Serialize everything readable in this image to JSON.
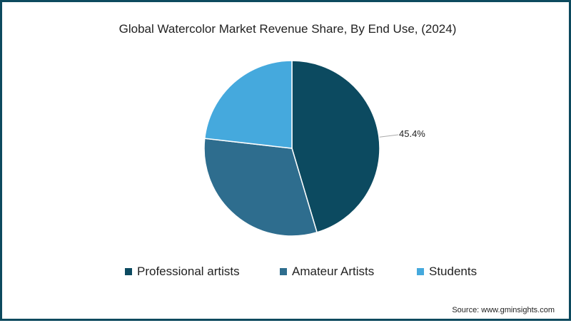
{
  "chart_data": {
    "type": "pie",
    "title": "Global Watercolor Market Revenue Share, By End Use, (2024)",
    "categories": [
      "Professional artists",
      "Amateur Artists",
      "Students"
    ],
    "values": [
      45.4,
      31.4,
      23.2
    ],
    "unit": "%",
    "colors": [
      "#0c4a60",
      "#2e6d8e",
      "#45a9dd"
    ],
    "visible_labels": [
      {
        "category": "Professional artists",
        "text": "45.4%"
      }
    ],
    "start_angle_deg": 0,
    "direction": "clockwise",
    "legend_position": "bottom",
    "source": "Source: www.gminsights.com"
  },
  "header": {
    "title": "Global Watercolor Market Revenue Share, By End Use, (2024)"
  },
  "legend": {
    "items": [
      {
        "label": "Professional artists",
        "color": "#0c4a60"
      },
      {
        "label": "Amateur Artists",
        "color": "#2e6d8e"
      },
      {
        "label": "Students",
        "color": "#45a9dd"
      }
    ]
  },
  "labels": {
    "professional": "45.4%"
  },
  "footer": {
    "source": "Source: www.gminsights.com"
  },
  "theme": {
    "frame_color": "#0d4a5e"
  }
}
